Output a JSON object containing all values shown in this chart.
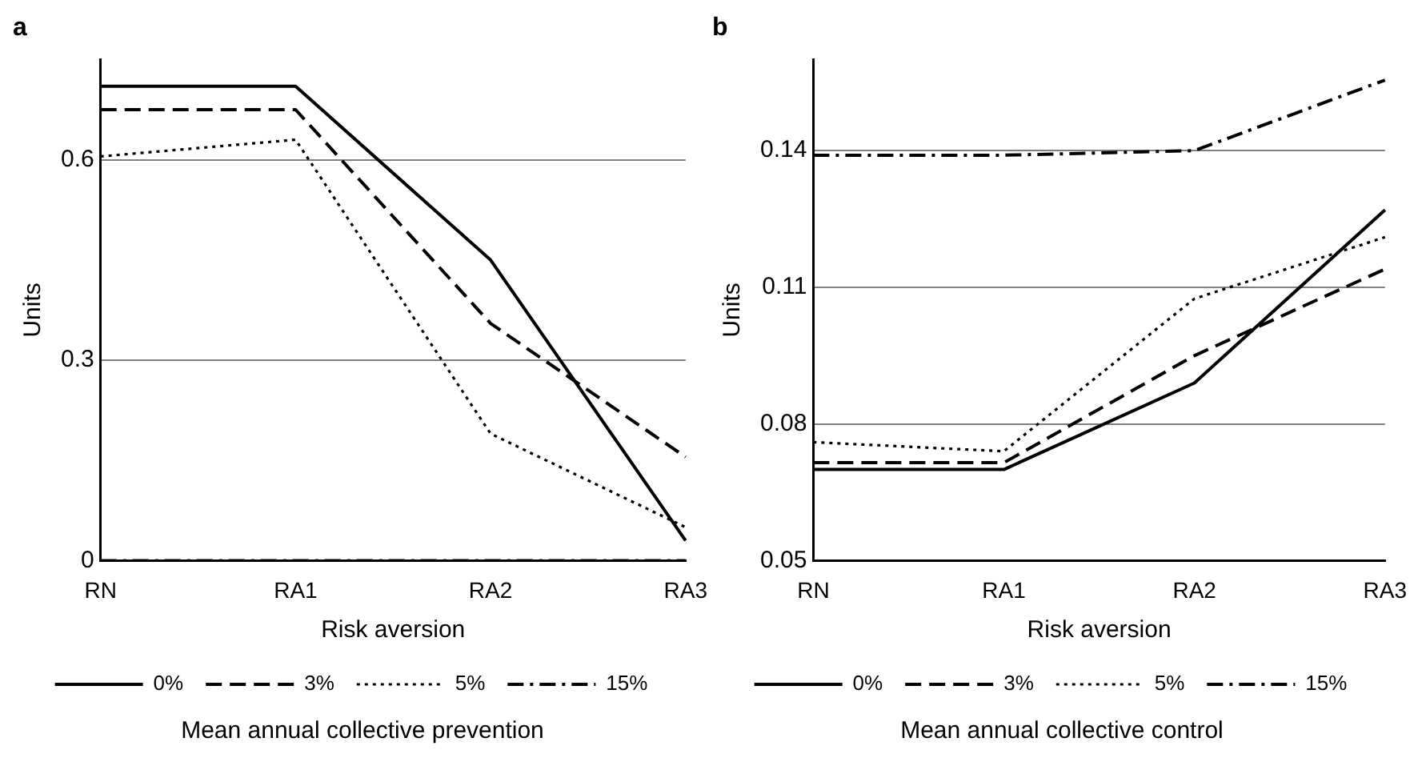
{
  "chart_data": [
    {
      "type": "line",
      "title": "a",
      "xlabel": "Risk aversion",
      "ylabel": "Units",
      "categories": [
        "RN",
        "RA1",
        "RA2",
        "RA3"
      ],
      "ylim": [
        0,
        0.75
      ],
      "yticks": [
        0,
        0.3,
        0.6
      ],
      "grid": "y",
      "legend": "bottom",
      "marker": "none",
      "annotations": [
        "Mean annual collective prevention"
      ],
      "series": [
        {
          "name": "0%",
          "color": "#000000",
          "line_style": "solid",
          "values": [
            0.71,
            0.71,
            0.45,
            0.03
          ]
        },
        {
          "name": "3%",
          "color": "#000000",
          "line_style": "dashed",
          "values": [
            0.675,
            0.675,
            0.355,
            0.155
          ]
        },
        {
          "name": "5%",
          "color": "#000000",
          "line_style": "dotted",
          "values": [
            0.605,
            0.63,
            0.19,
            0.05
          ]
        },
        {
          "name": "15%",
          "color": "#000000",
          "line_style": "dashdot",
          "values": [
            0,
            0,
            0,
            0
          ]
        }
      ]
    },
    {
      "type": "line",
      "title": "b",
      "xlabel": "Risk aversion",
      "ylabel": "Units",
      "categories": [
        "RN",
        "RA1",
        "RA2",
        "RA3"
      ],
      "ylim": [
        0.05,
        0.16
      ],
      "yticks": [
        0.05,
        0.08,
        0.11,
        0.14
      ],
      "grid": "y",
      "legend": "bottom",
      "marker": "none",
      "annotations": [
        "Mean annual collective control"
      ],
      "series": [
        {
          "name": "0%",
          "color": "#000000",
          "line_style": "solid",
          "values": [
            0.07,
            0.07,
            0.089,
            0.127
          ]
        },
        {
          "name": "3%",
          "color": "#000000",
          "line_style": "dashed",
          "values": [
            0.0715,
            0.0715,
            0.095,
            0.114
          ]
        },
        {
          "name": "5%",
          "color": "#000000",
          "line_style": "dotted",
          "values": [
            0.076,
            0.074,
            0.1075,
            0.121
          ]
        },
        {
          "name": "15%",
          "color": "#000000",
          "line_style": "dashdot",
          "values": [
            0.139,
            0.139,
            0.14,
            0.1555
          ]
        }
      ]
    }
  ]
}
